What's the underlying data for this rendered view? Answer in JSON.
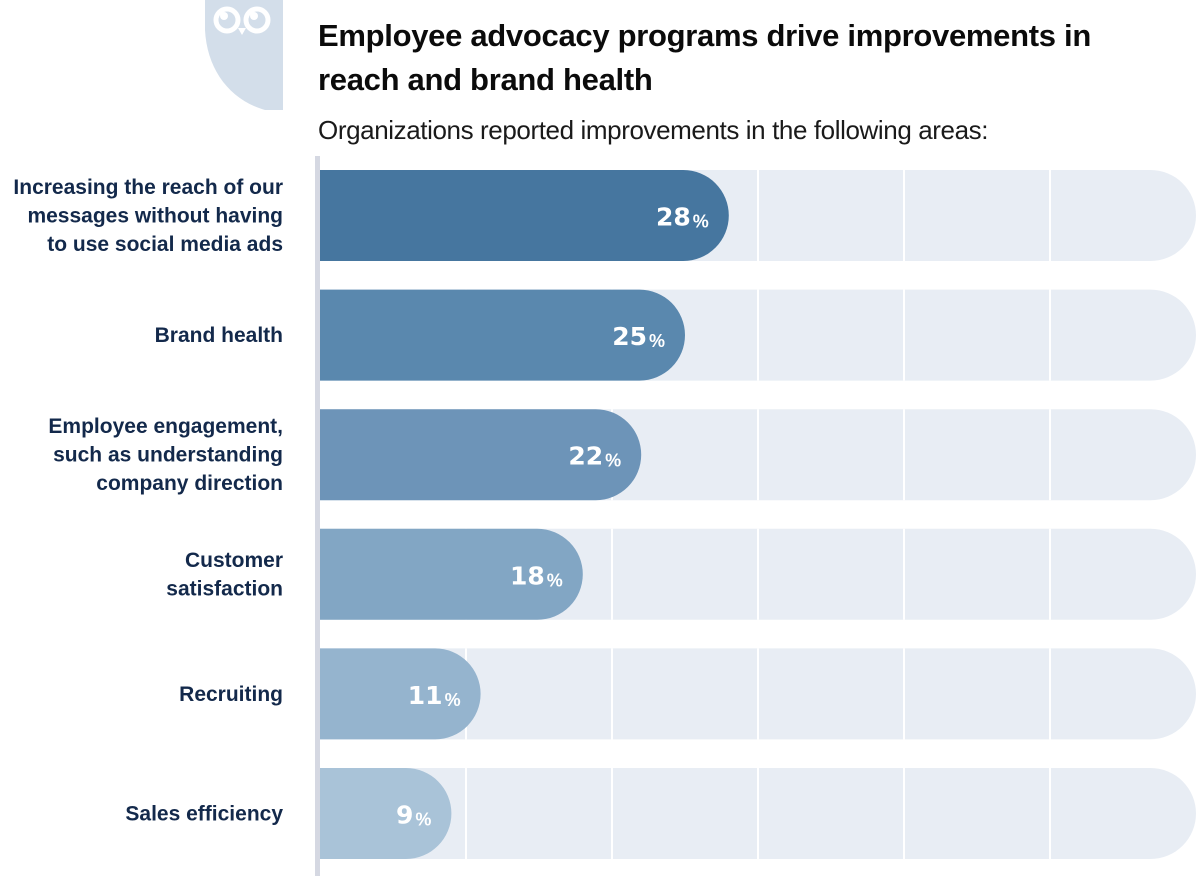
{
  "header": {
    "logo_icon": "owl-logo-icon"
  },
  "chart_data": {
    "type": "bar",
    "orientation": "horizontal",
    "title": "Employee advocacy programs drive improvements in reach and brand health",
    "subtitle": "Organizations reported improvements in the following areas:",
    "categories": [
      "Increasing the reach of our messages without having to use social media ads",
      "Brand health",
      "Employee engagement, such as understanding company direction",
      "Customer satisfaction",
      "Recruiting",
      "Sales efficiency"
    ],
    "category_label_lines": [
      [
        "Increasing the reach of our",
        "messages without having",
        "to use social media ads"
      ],
      [
        "Brand health"
      ],
      [
        "Employee engagement,",
        "such as understanding",
        "company direction"
      ],
      [
        "Customer",
        "satisfaction"
      ],
      [
        "Recruiting"
      ],
      [
        "Sales efficiency"
      ]
    ],
    "values": [
      28,
      25,
      22,
      18,
      11,
      9
    ],
    "value_suffix": "%",
    "xlim": [
      0,
      60
    ],
    "grid_step": 10,
    "grid": true,
    "xlabel": "",
    "ylabel": "",
    "colors": {
      "bars": [
        "#46769f",
        "#5a88ae",
        "#6d94b8",
        "#82a6c4",
        "#95b4ce",
        "#a9c3d8"
      ],
      "track": "#e8edf4",
      "label_text": "#13294b",
      "value_text": "#ffffff",
      "axis": "#d5d8e2",
      "logo": "#d3deea"
    }
  }
}
